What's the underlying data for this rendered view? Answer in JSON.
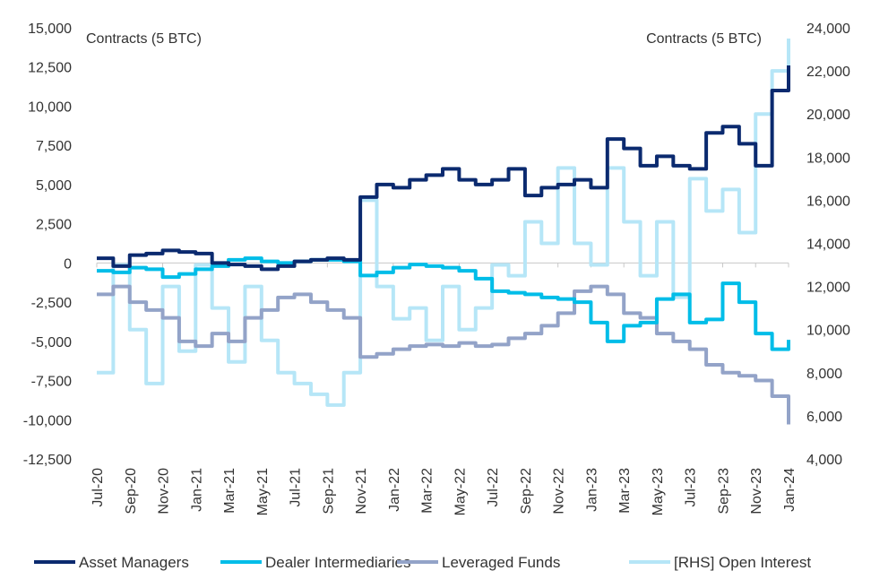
{
  "chart_data": {
    "type": "line",
    "title": "",
    "ylabel_left": "Contracts (5 BTC)",
    "ylabel_right": "Contracts (5 BTC)",
    "ylim_left": [
      -12500,
      15000
    ],
    "ylim_right": [
      4000,
      24000
    ],
    "yticks_left": [
      "15,000",
      "12,500",
      "10,000",
      "7,500",
      "5,000",
      "2,500",
      "0",
      "-2,500",
      "-5,000",
      "-7,500",
      "-10,000",
      "-12,500"
    ],
    "yticks_right": [
      "24,000",
      "22,000",
      "20,000",
      "18,000",
      "16,000",
      "14,000",
      "12,000",
      "10,000",
      "8,000",
      "6,000",
      "4,000"
    ],
    "xtick_labels": [
      "Jul-20",
      "Sep-20",
      "Nov-20",
      "Jan-21",
      "Mar-21",
      "May-21",
      "Jul-21",
      "Sep-21",
      "Nov-21",
      "Jan-22",
      "Mar-22",
      "May-22",
      "Jul-22",
      "Sep-22",
      "Nov-22",
      "Jan-23",
      "Mar-23",
      "May-23",
      "Jul-23",
      "Sep-23",
      "Nov-23",
      "Jan-24"
    ],
    "x": [
      "Jul-20",
      "Aug-20",
      "Sep-20",
      "Oct-20",
      "Nov-20",
      "Dec-20",
      "Jan-21",
      "Feb-21",
      "Mar-21",
      "Apr-21",
      "May-21",
      "Jun-21",
      "Jul-21",
      "Aug-21",
      "Sep-21",
      "Oct-21",
      "Nov-21",
      "Dec-21",
      "Jan-22",
      "Feb-22",
      "Mar-22",
      "Apr-22",
      "May-22",
      "Jun-22",
      "Jul-22",
      "Aug-22",
      "Sep-22",
      "Oct-22",
      "Nov-22",
      "Dec-22",
      "Jan-23",
      "Feb-23",
      "Mar-23",
      "Apr-23",
      "May-23",
      "Jun-23",
      "Jul-23",
      "Aug-23",
      "Sep-23",
      "Oct-23",
      "Nov-23",
      "Dec-23",
      "Jan-24"
    ],
    "grid": false,
    "legend_placement": "bottom",
    "series": [
      {
        "name": "Asset Managers",
        "axis": "left",
        "color": "#0b2a6f",
        "values": [
          300,
          -200,
          500,
          600,
          800,
          700,
          600,
          0,
          -100,
          -200,
          -400,
          -200,
          100,
          200,
          300,
          200,
          4200,
          5000,
          4800,
          5300,
          5600,
          6000,
          5300,
          5000,
          5300,
          6000,
          4300,
          4800,
          5000,
          5300,
          4800,
          7900,
          7300,
          6200,
          6800,
          6200,
          6000,
          8300,
          8700,
          7600,
          6200,
          11000,
          12600
        ]
      },
      {
        "name": "Dealer Intermediaries",
        "axis": "left",
        "color": "#00bde8",
        "values": [
          -500,
          -600,
          -300,
          -400,
          -900,
          -700,
          -400,
          -200,
          200,
          300,
          100,
          0,
          100,
          200,
          200,
          100,
          -800,
          -600,
          -300,
          -100,
          -200,
          -300,
          -500,
          -1000,
          -1800,
          -1900,
          -2000,
          -2200,
          -2300,
          -2500,
          -3800,
          -5000,
          -4000,
          -3800,
          -2300,
          -2000,
          -3800,
          -3600,
          -1300,
          -2500,
          -4500,
          -5500,
          -4900
        ]
      },
      {
        "name": "Leveraged Funds",
        "axis": "left",
        "color": "#93a3c8",
        "values": [
          -2000,
          -1500,
          -2500,
          -3000,
          -3500,
          -5000,
          -5300,
          -4500,
          -5000,
          -3500,
          -3000,
          -2200,
          -2000,
          -2500,
          -3000,
          -3500,
          -6000,
          -5800,
          -5500,
          -5300,
          -5200,
          -5300,
          -5100,
          -5300,
          -5200,
          -4800,
          -4500,
          -4000,
          -3200,
          -1800,
          -1500,
          -2000,
          -3200,
          -3500,
          -4500,
          -5000,
          -5500,
          -6500,
          -7000,
          -7200,
          -7500,
          -8500,
          -10300
        ]
      },
      {
        "name": "[RHS] Open Interest",
        "axis": "right",
        "color": "#b6e6f7",
        "values": [
          8000,
          13000,
          10000,
          7500,
          12000,
          9000,
          13000,
          11000,
          8500,
          12000,
          9500,
          8000,
          7500,
          7000,
          6500,
          8000,
          16000,
          12000,
          10500,
          11000,
          9500,
          12000,
          10000,
          11000,
          13000,
          12500,
          15000,
          14000,
          17500,
          14000,
          13000,
          17500,
          15000,
          12500,
          15000,
          11500,
          17000,
          15500,
          16500,
          14500,
          20000,
          22000,
          23500
        ]
      }
    ]
  }
}
